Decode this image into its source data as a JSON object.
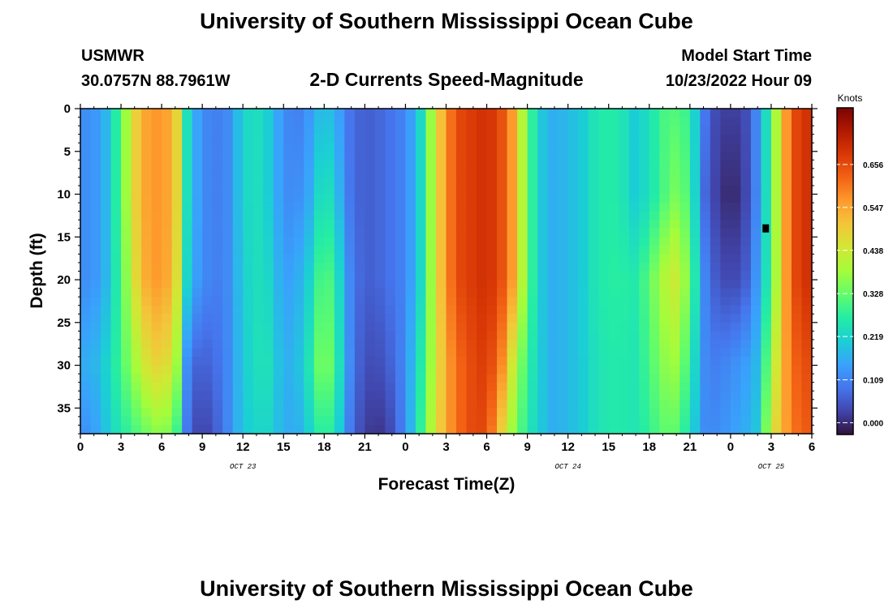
{
  "header": {
    "title": "University of Southern Mississippi Ocean Cube",
    "station": "USMWR",
    "coords": "30.0757N  88.7961W",
    "plot_title": "2-D Currents Speed-Magnitude",
    "model_label": "Model Start Time",
    "model_time": "10/23/2022 Hour 09"
  },
  "footer": {
    "title": "University of Southern Mississippi Ocean Cube"
  },
  "chart_data": {
    "type": "heatmap",
    "title": "2-D Currents Speed-Magnitude",
    "xlabel": "Forecast Time(Z)",
    "ylabel": "Depth (ft)",
    "x_unit": "forecast hour (Z)",
    "xlim": [
      0,
      54
    ],
    "ylim": [
      38,
      0
    ],
    "x_ticks": [
      0,
      3,
      6,
      9,
      12,
      15,
      18,
      21,
      24,
      27,
      30,
      33,
      36,
      39,
      42,
      45,
      48,
      51,
      54
    ],
    "x_tick_labels": [
      "0",
      "3",
      "6",
      "9",
      "12",
      "15",
      "18",
      "21",
      "0",
      "3",
      "6",
      "9",
      "12",
      "15",
      "18",
      "21",
      "0",
      "3",
      "6"
    ],
    "date_labels": [
      {
        "text": "OCT 23",
        "x": 12
      },
      {
        "text": "OCT 24",
        "x": 36
      },
      {
        "text": "OCT 25",
        "x": 51
      }
    ],
    "y_ticks": [
      0,
      5,
      10,
      15,
      20,
      25,
      30,
      35
    ],
    "y_tick_labels": [
      "0",
      "5",
      "10",
      "15",
      "20",
      "25",
      "30",
      "35"
    ],
    "colorbar": {
      "unit": "Knots",
      "ticks": [
        "0.000",
        "0.109",
        "0.219",
        "0.328",
        "0.438",
        "0.547",
        "0.656"
      ],
      "tick_values": [
        0.0,
        0.109,
        0.219,
        0.328,
        0.438,
        0.547,
        0.656
      ],
      "range": [
        -0.03,
        0.8
      ],
      "colors": [
        "#30123b",
        "#4145ab",
        "#4675ed",
        "#39a2fc",
        "#1bcfd4",
        "#24eca6",
        "#61fc6c",
        "#a4fc3b",
        "#d1e834",
        "#f3c63a",
        "#fe9b2d",
        "#f36315",
        "#d93806",
        "#b11901",
        "#7a0403"
      ]
    },
    "hours": [
      0,
      1,
      2,
      3,
      4,
      5,
      6,
      7,
      8,
      9,
      10,
      11,
      12,
      13,
      14,
      15,
      16,
      17,
      18,
      19,
      20,
      21,
      22,
      23,
      24,
      25,
      26,
      27,
      28,
      29,
      30,
      31,
      32,
      33,
      34,
      35,
      36,
      37,
      38,
      39,
      40,
      41,
      42,
      43,
      44,
      45,
      46,
      47,
      48,
      49,
      50,
      51,
      52,
      53,
      54
    ],
    "depth_levels_ft": [
      0,
      10,
      20,
      30,
      38
    ],
    "speed_knots_by_depth": [
      [
        0.12,
        0.13,
        0.18,
        0.32,
        0.48,
        0.56,
        0.57,
        0.52,
        0.2,
        0.12,
        0.1,
        0.12,
        0.22,
        0.24,
        0.2,
        0.12,
        0.1,
        0.14,
        0.2,
        0.15,
        0.08,
        0.06,
        0.07,
        0.09,
        0.11,
        0.2,
        0.4,
        0.58,
        0.66,
        0.68,
        0.7,
        0.66,
        0.55,
        0.32,
        0.2,
        0.16,
        0.18,
        0.2,
        0.25,
        0.27,
        0.25,
        0.2,
        0.24,
        0.3,
        0.31,
        0.28,
        0.1,
        0.03,
        0.02,
        0.03,
        0.12,
        0.3,
        0.55,
        0.68,
        0.7
      ],
      [
        0.12,
        0.13,
        0.18,
        0.32,
        0.48,
        0.56,
        0.57,
        0.52,
        0.2,
        0.12,
        0.1,
        0.12,
        0.22,
        0.24,
        0.2,
        0.12,
        0.12,
        0.16,
        0.27,
        0.18,
        0.08,
        0.06,
        0.07,
        0.09,
        0.11,
        0.2,
        0.4,
        0.58,
        0.66,
        0.68,
        0.7,
        0.66,
        0.55,
        0.32,
        0.2,
        0.16,
        0.18,
        0.2,
        0.25,
        0.27,
        0.25,
        0.2,
        0.24,
        0.3,
        0.35,
        0.3,
        0.08,
        0.02,
        -0.01,
        0.02,
        0.12,
        0.3,
        0.55,
        0.68,
        0.7
      ],
      [
        0.12,
        0.13,
        0.18,
        0.3,
        0.46,
        0.55,
        0.57,
        0.5,
        0.18,
        0.12,
        0.1,
        0.12,
        0.21,
        0.24,
        0.22,
        0.14,
        0.16,
        0.22,
        0.34,
        0.24,
        0.1,
        0.06,
        0.07,
        0.09,
        0.11,
        0.2,
        0.4,
        0.58,
        0.66,
        0.68,
        0.7,
        0.66,
        0.55,
        0.32,
        0.2,
        0.16,
        0.18,
        0.2,
        0.25,
        0.27,
        0.27,
        0.26,
        0.32,
        0.4,
        0.44,
        0.34,
        0.12,
        0.05,
        0.03,
        0.05,
        0.14,
        0.3,
        0.55,
        0.68,
        0.7
      ],
      [
        0.16,
        0.17,
        0.22,
        0.3,
        0.38,
        0.46,
        0.49,
        0.42,
        0.08,
        0.06,
        0.08,
        0.12,
        0.2,
        0.24,
        0.24,
        0.16,
        0.18,
        0.26,
        0.38,
        0.26,
        0.1,
        0.04,
        0.04,
        0.07,
        0.12,
        0.24,
        0.4,
        0.55,
        0.62,
        0.66,
        0.68,
        0.6,
        0.42,
        0.28,
        0.2,
        0.16,
        0.18,
        0.2,
        0.24,
        0.26,
        0.26,
        0.25,
        0.3,
        0.36,
        0.38,
        0.28,
        0.12,
        0.1,
        0.12,
        0.14,
        0.18,
        0.38,
        0.55,
        0.64,
        0.66
      ],
      [
        0.12,
        0.14,
        0.2,
        0.26,
        0.3,
        0.34,
        0.37,
        0.32,
        0.06,
        0.02,
        0.06,
        0.12,
        0.2,
        0.22,
        0.22,
        0.16,
        0.16,
        0.22,
        0.3,
        0.22,
        0.08,
        0.02,
        0.01,
        0.04,
        0.12,
        0.26,
        0.42,
        0.55,
        0.62,
        0.66,
        0.66,
        0.5,
        0.36,
        0.26,
        0.2,
        0.16,
        0.18,
        0.2,
        0.24,
        0.26,
        0.26,
        0.25,
        0.28,
        0.32,
        0.32,
        0.24,
        0.12,
        0.12,
        0.14,
        0.16,
        0.2,
        0.44,
        0.55,
        0.62,
        0.64
      ]
    ],
    "marker": {
      "x": 50.6,
      "depth": 14,
      "label": ""
    }
  }
}
